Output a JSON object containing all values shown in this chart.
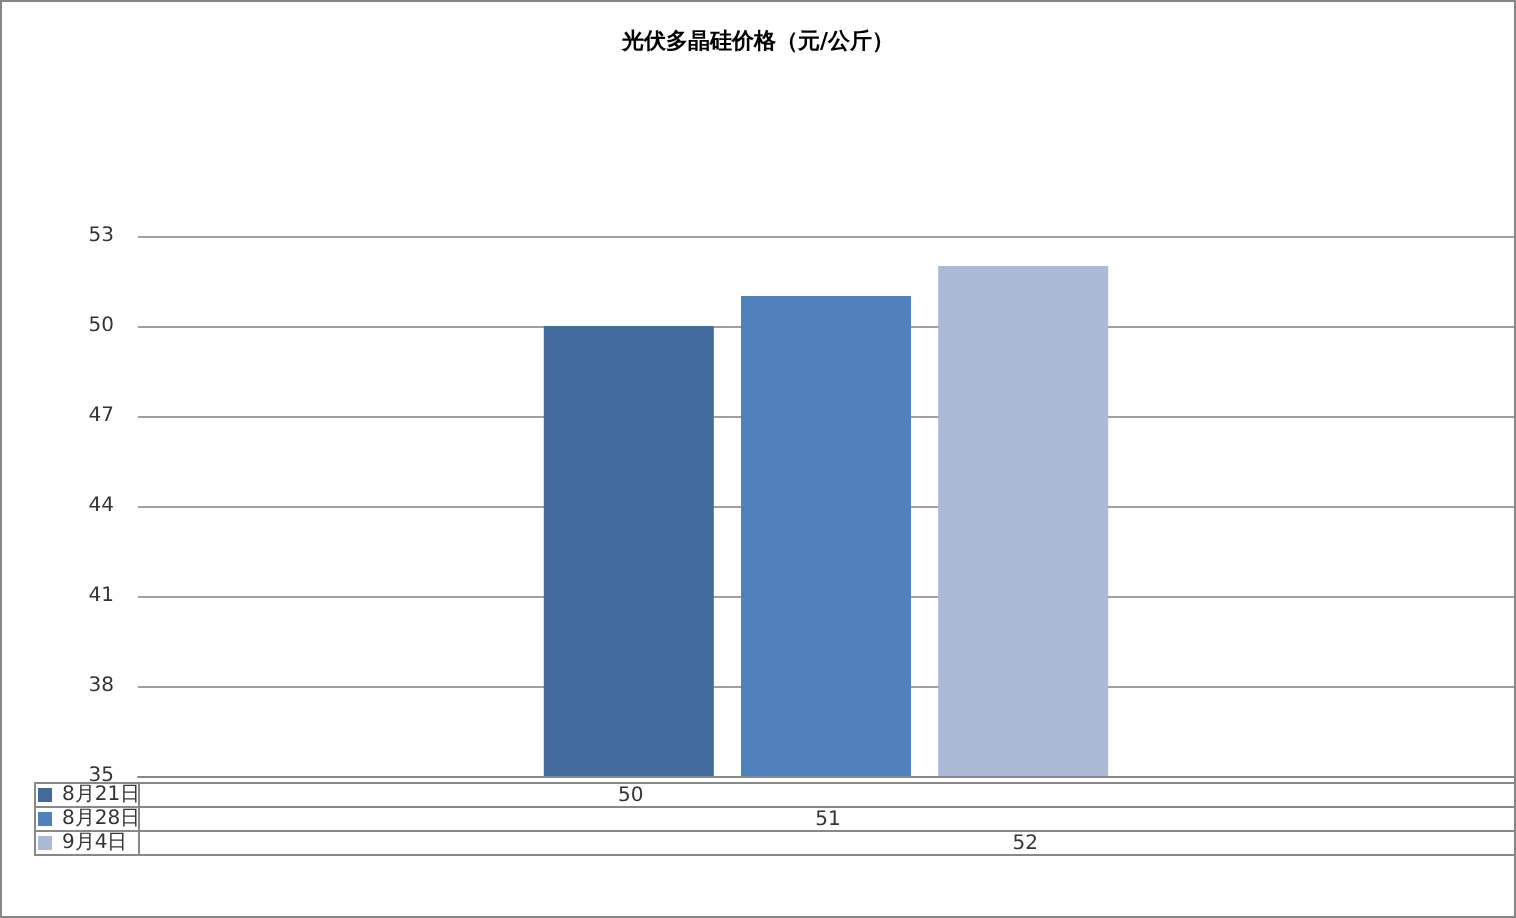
{
  "chart_data": {
    "type": "bar",
    "title": "光伏多晶硅价格（元/公斤）",
    "categories": [
      null
    ],
    "series": [
      {
        "name": "8月21日",
        "color": "#416a9c",
        "values": [
          50
        ]
      },
      {
        "name": "8月28日",
        "color": "#4f81bd",
        "values": [
          51
        ]
      },
      {
        "name": "9月4日",
        "color": "#aabad7",
        "values": [
          52
        ]
      }
    ],
    "ylim": [
      35,
      53
    ],
    "yticks": [
      35,
      38,
      41,
      44,
      47,
      50,
      53
    ],
    "grid": "y",
    "legend": "bottom left",
    "data_labels": true
  }
}
